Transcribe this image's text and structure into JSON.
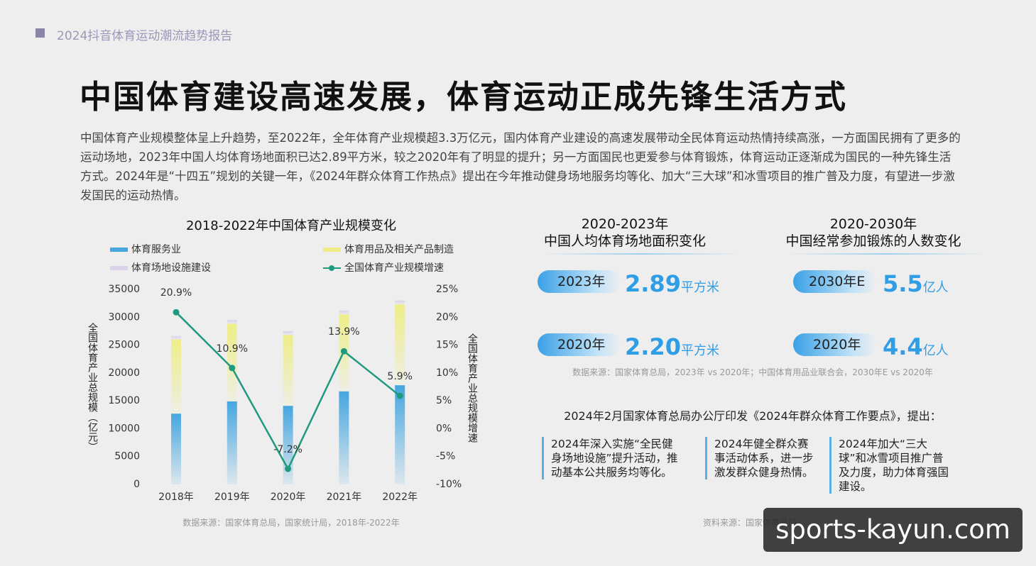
{
  "header": "2024抖音体育运动潮流趋势报告",
  "title": "中国体育建设高速发展，体育运动正成先锋生活方式",
  "intro": "中国体育产业规模整体呈上升趋势，至2022年，全年体育产业规模超3.3万亿元，国内体育产业建设的高速发展带动全民体育运动热情持续高涨，一方面国民拥有了更多的运动场地，2023年中国人均体育场地面积已达2.89平方米，较之2020年有了明显的提升；另一方面国民也更爱参与体育锻炼，体育运动正逐渐成为国民的一种先锋生活方式。2024年是“十四五”规划的关键一年，《2024年群众体育工作热点》提出在今年推动健身场地服务均等化、加大“三大球”和冰雪项目的推广普及力度，有望进一步激发国民的运动热情。",
  "chart_data": {
    "type": "bar",
    "stacked": true,
    "title": "2018-2022年中国体育产业规模变化",
    "categories": [
      "2018年",
      "2019年",
      "2020年",
      "2021年",
      "2022年"
    ],
    "series": [
      {
        "name": "体育服务业",
        "color": "#45a6e0",
        "values": [
          12700,
          14900,
          14100,
          16700,
          17800
        ]
      },
      {
        "name": "体育用品及相关产品制造",
        "color": "#eeee88",
        "values": [
          13300,
          13900,
          12700,
          13800,
          14500
        ]
      },
      {
        "name": "体育场地设施建设",
        "color": "#d9d2e8",
        "values": [
          600,
          700,
          700,
          700,
          700
        ]
      },
      {
        "name": "全国体育产业规模增速",
        "type": "line",
        "axis": "y2",
        "color": "#1f9a7e",
        "values": [
          20.9,
          10.9,
          -7.2,
          13.9,
          5.9
        ],
        "value_labels": [
          "20.9%",
          "10.9%",
          "-7.2%",
          "13.9%",
          "5.9%"
        ]
      }
    ],
    "y_label": "全国体育产业总规模（亿元）",
    "y2_label": "全国体育产业总规模增速",
    "ylim": [
      0,
      35000
    ],
    "yticks": [
      0,
      5000,
      10000,
      15000,
      20000,
      25000,
      30000,
      35000
    ],
    "y2lim": [
      -10,
      25
    ],
    "y2ticks": [
      {
        "value": -10,
        "label": "-10%"
      },
      {
        "value": -5,
        "label": "-5%"
      },
      {
        "value": 0,
        "label": "0%"
      },
      {
        "value": 5,
        "label": "5%"
      },
      {
        "value": 10,
        "label": "10%"
      },
      {
        "value": 15,
        "label": "15%"
      },
      {
        "value": 20,
        "label": "20%"
      },
      {
        "value": 25,
        "label": "25%"
      }
    ],
    "source": "数据来源：国家体育总局，国家统计局，2018年-2022年"
  },
  "stats": [
    {
      "title": [
        "2020-2023年",
        "中国人均体育场地面积变化"
      ],
      "items": [
        {
          "label": "2023年",
          "value": "2.89",
          "unit": "平方米"
        },
        {
          "label": "2020年",
          "value": "2.20",
          "unit": "平方米"
        }
      ]
    },
    {
      "title": [
        "2020-2030年",
        "中国经常参加锻炼的人数变化"
      ],
      "items": [
        {
          "label": "2030年E",
          "value": "5.5",
          "unit": "亿人"
        },
        {
          "label": "2020年",
          "value": "4.4",
          "unit": "亿人"
        }
      ]
    }
  ],
  "stats_source": "数据来源：国家体育总局，2023年 vs 2020年；中国体育用品业联合会，2030年E vs 2020年",
  "notice": "2024年2月国家体育总局办公厅印发《2024年群众体育工作要点》，提出：",
  "points": [
    "2024年深入实施“全民健身场地设施”提升活动，推动基本公共服务均等化。",
    "2024年健全群众赛事活动体系，进一步激发群众健身热情。",
    "2024年加大“三大球”和冰雪项目推广普及力度，助力体育强国建设。"
  ],
  "points_source": "资料来源：国家体育总局",
  "watermark": "sports-kayun.com"
}
